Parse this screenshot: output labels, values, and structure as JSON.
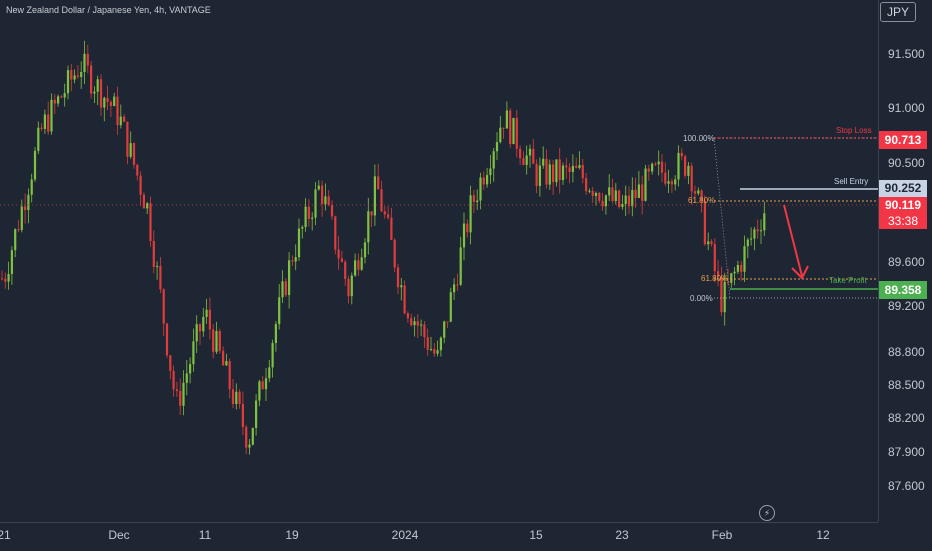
{
  "header": {
    "title": "New Zealand Dollar / Japanese Yen, 4h, VANTAGE",
    "currency_badge": "JPY"
  },
  "price_axis": {
    "ticks": [
      "91.500",
      "91.000",
      "90.500",
      "89.600",
      "89.200",
      "88.800",
      "88.500",
      "88.200",
      "87.900",
      "87.600"
    ]
  },
  "time_axis": {
    "ticks": [
      "21",
      "Dec",
      "11",
      "19",
      "2024",
      "15",
      "23",
      "Feb",
      "12"
    ]
  },
  "price_tags": {
    "stop_loss": "90.713",
    "sell_entry": "90.252",
    "last_price": "90.119",
    "countdown": "33:38",
    "take_profit": "89.358"
  },
  "annotations": {
    "stop_loss": "Stop Loss",
    "sell_entry": "Sell Entry",
    "take_profit": "Take Profit"
  },
  "fib_levels": {
    "level_100": "100.00%",
    "level_618_upper": "61.80%",
    "level_618_lower": "61.80%",
    "level_0": "0.00%"
  },
  "colors": {
    "background": "#1f2633",
    "bull_candle": "#7ec242",
    "bear_candle": "#e03c3c",
    "stop_loss": "#f23645",
    "sell_entry": "#c8d3e6",
    "take_profit": "#4caf50",
    "fib": "#e8a14b"
  },
  "chart_data": {
    "type": "candlestick",
    "symbol": "NZDJPY",
    "timeframe": "4h",
    "ylim": [
      87.4,
      91.9
    ],
    "x_ticks": [
      "21",
      "Dec",
      "11",
      "19",
      "2024",
      "15",
      "23",
      "Feb",
      "12"
    ],
    "trade_levels": {
      "stop_loss": 90.713,
      "sell_entry": 90.252,
      "take_profit": 89.358,
      "last_price": 90.119
    },
    "approx_close_path": [
      {
        "x": "21",
        "price": 89.5
      },
      {
        "x": "",
        "price": 90.8
      },
      {
        "x": "",
        "price": 91.35
      },
      {
        "x": "Dec",
        "price": 90.9
      },
      {
        "x": "",
        "price": 90.1
      },
      {
        "x": "",
        "price": 88.4
      },
      {
        "x": "11",
        "price": 89.2
      },
      {
        "x": "",
        "price": 88.1
      },
      {
        "x": "19",
        "price": 89.7
      },
      {
        "x": "",
        "price": 90.3
      },
      {
        "x": "",
        "price": 89.4
      },
      {
        "x": "",
        "price": 90.3
      },
      {
        "x": "2024",
        "price": 89.3
      },
      {
        "x": "",
        "price": 88.8
      },
      {
        "x": "",
        "price": 90.1
      },
      {
        "x": "",
        "price": 90.9
      },
      {
        "x": "15",
        "price": 90.4
      },
      {
        "x": "",
        "price": 90.4
      },
      {
        "x": "23",
        "price": 90.1
      },
      {
        "x": "",
        "price": 90.4
      },
      {
        "x": "",
        "price": 90.5
      },
      {
        "x": "Feb",
        "price": 89.3
      },
      {
        "x": "",
        "price": 90.12
      }
    ]
  }
}
